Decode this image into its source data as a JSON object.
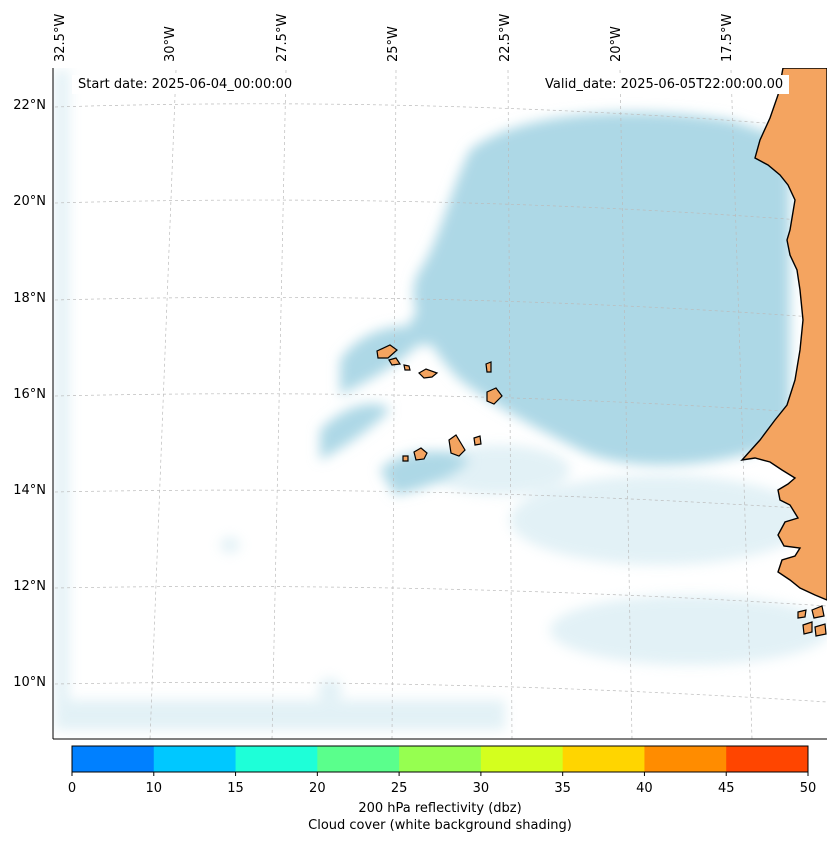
{
  "map": {
    "start_date": "Start date: 2025-06-04_00:00:00",
    "valid_date": "Valid_date: 2025-06-05T22:00:00.00",
    "lon_labels": [
      "32.5°W",
      "30°W",
      "27.5°W",
      "25°W",
      "22.5°W",
      "20°W",
      "17.5°W"
    ],
    "lat_labels": [
      "22°N",
      "20°N",
      "18°N",
      "16°N",
      "14°N",
      "12°N",
      "10°N"
    ],
    "land_color": "#f4a460",
    "cloud_color": "#add8e6",
    "coastline_color": "#000000"
  },
  "colorbar": {
    "ticks": [
      "0",
      "10",
      "15",
      "20",
      "25",
      "30",
      "35",
      "40",
      "45",
      "50"
    ],
    "colors": [
      "#0080ff",
      "#00c8ff",
      "#1effd8",
      "#5aff8c",
      "#96ff50",
      "#d4ff1e",
      "#ffd500",
      "#ff8c00",
      "#ff4500"
    ],
    "title": "200 hPa reflectivity (dbz)",
    "subtitle": "Cloud cover (white background shading)"
  }
}
